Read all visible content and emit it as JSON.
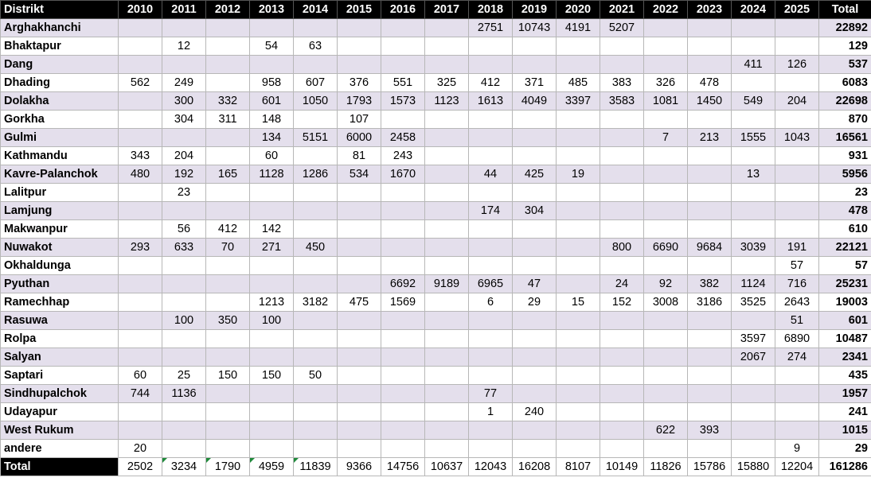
{
  "table": {
    "header": [
      "Distrikt",
      "2010",
      "2011",
      "2012",
      "2013",
      "2014",
      "2015",
      "2016",
      "2017",
      "2018",
      "2019",
      "2020",
      "2021",
      "2022",
      "2023",
      "2024",
      "2025",
      "Total"
    ],
    "rows": [
      [
        "Arghakhanchi",
        null,
        null,
        null,
        null,
        null,
        null,
        null,
        null,
        2751,
        10743,
        4191,
        5207,
        null,
        null,
        null,
        null,
        22892
      ],
      [
        "Bhaktapur",
        null,
        12,
        null,
        54,
        63,
        null,
        null,
        null,
        null,
        null,
        null,
        null,
        null,
        null,
        null,
        null,
        129
      ],
      [
        "Dang",
        null,
        null,
        null,
        null,
        null,
        null,
        null,
        null,
        null,
        null,
        null,
        null,
        null,
        null,
        411,
        126,
        537
      ],
      [
        "Dhading",
        562,
        249,
        null,
        958,
        607,
        376,
        551,
        325,
        412,
        371,
        485,
        383,
        326,
        478,
        null,
        null,
        6083
      ],
      [
        "Dolakha",
        null,
        300,
        332,
        601,
        1050,
        1793,
        1573,
        1123,
        1613,
        4049,
        3397,
        3583,
        1081,
        1450,
        549,
        204,
        22698
      ],
      [
        "Gorkha",
        null,
        304,
        311,
        148,
        null,
        107,
        null,
        null,
        null,
        null,
        null,
        null,
        null,
        null,
        null,
        null,
        870
      ],
      [
        "Gulmi",
        null,
        null,
        null,
        134,
        5151,
        6000,
        2458,
        null,
        null,
        null,
        null,
        null,
        7,
        213,
        1555,
        1043,
        16561
      ],
      [
        "Kathmandu",
        343,
        204,
        null,
        60,
        null,
        81,
        243,
        null,
        null,
        null,
        null,
        null,
        null,
        null,
        null,
        null,
        931
      ],
      [
        "Kavre-Palanchok",
        480,
        192,
        165,
        1128,
        1286,
        534,
        1670,
        null,
        44,
        425,
        19,
        null,
        null,
        null,
        13,
        null,
        5956
      ],
      [
        "Lalitpur",
        null,
        23,
        null,
        null,
        null,
        null,
        null,
        null,
        null,
        null,
        null,
        null,
        null,
        null,
        null,
        null,
        23
      ],
      [
        "Lamjung",
        null,
        null,
        null,
        null,
        null,
        null,
        null,
        null,
        174,
        304,
        null,
        null,
        null,
        null,
        null,
        null,
        478
      ],
      [
        "Makwanpur",
        null,
        56,
        412,
        142,
        null,
        null,
        null,
        null,
        null,
        null,
        null,
        null,
        null,
        null,
        null,
        null,
        610
      ],
      [
        "Nuwakot",
        293,
        633,
        70,
        271,
        450,
        null,
        null,
        null,
        null,
        null,
        null,
        800,
        6690,
        9684,
        3039,
        191,
        22121
      ],
      [
        "Okhaldunga",
        null,
        null,
        null,
        null,
        null,
        null,
        null,
        null,
        null,
        null,
        null,
        null,
        null,
        null,
        null,
        57,
        57
      ],
      [
        "Pyuthan",
        null,
        null,
        null,
        null,
        null,
        null,
        6692,
        9189,
        6965,
        47,
        null,
        24,
        92,
        382,
        1124,
        716,
        25231
      ],
      [
        "Ramechhap",
        null,
        null,
        null,
        1213,
        3182,
        475,
        1569,
        null,
        6,
        29,
        15,
        152,
        3008,
        3186,
        3525,
        2643,
        19003
      ],
      [
        "Rasuwa",
        null,
        100,
        350,
        100,
        null,
        null,
        null,
        null,
        null,
        null,
        null,
        null,
        null,
        null,
        null,
        51,
        601
      ],
      [
        "Rolpa",
        null,
        null,
        null,
        null,
        null,
        null,
        null,
        null,
        null,
        null,
        null,
        null,
        null,
        null,
        3597,
        6890,
        10487
      ],
      [
        "Salyan",
        null,
        null,
        null,
        null,
        null,
        null,
        null,
        null,
        null,
        null,
        null,
        null,
        null,
        null,
        2067,
        274,
        2341
      ],
      [
        "Saptari",
        60,
        25,
        150,
        150,
        50,
        null,
        null,
        null,
        null,
        null,
        null,
        null,
        null,
        null,
        null,
        null,
        435
      ],
      [
        "Sindhupalchok",
        744,
        1136,
        null,
        null,
        null,
        null,
        null,
        null,
        77,
        null,
        null,
        null,
        null,
        null,
        null,
        null,
        1957
      ],
      [
        "Udayapur",
        null,
        null,
        null,
        null,
        null,
        null,
        null,
        null,
        1,
        240,
        null,
        null,
        null,
        null,
        null,
        null,
        241
      ],
      [
        "West Rukum",
        null,
        null,
        null,
        null,
        null,
        null,
        null,
        null,
        null,
        null,
        null,
        null,
        622,
        393,
        null,
        null,
        1015
      ],
      [
        "andere",
        20,
        null,
        null,
        null,
        null,
        null,
        null,
        null,
        null,
        null,
        null,
        null,
        null,
        null,
        null,
        9,
        29
      ],
      [
        "Total",
        2502,
        3234,
        1790,
        4959,
        11839,
        9366,
        14756,
        10637,
        12043,
        16208,
        8107,
        10149,
        11826,
        15786,
        15880,
        12204,
        161286
      ]
    ]
  }
}
